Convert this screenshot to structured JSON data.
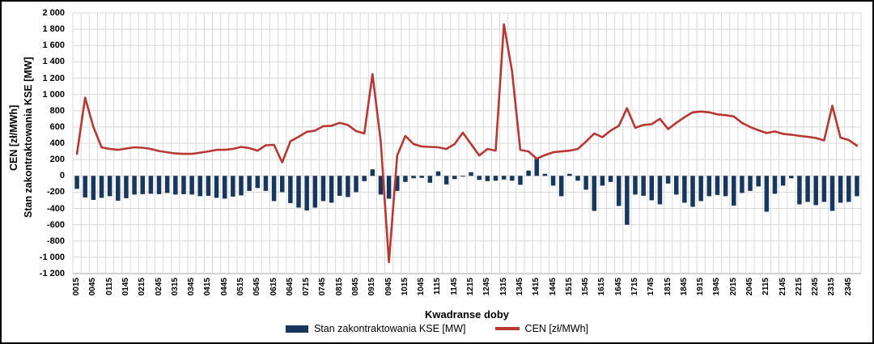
{
  "chart_data": {
    "type": "combo",
    "title": "",
    "xlabel": "Kwadranse doby",
    "y_axis_title_lines": [
      "CEN [zł/MWh]",
      "Stan zakontraktowania KSE [MW]"
    ],
    "ylim": [
      -1200,
      2000
    ],
    "ytick_step": 200,
    "y_tick_labels": [
      "2 000",
      "1 800",
      "1 600",
      "1 400",
      "1 200",
      "1 000",
      "800",
      "600",
      "400",
      "200",
      "0",
      "-200",
      "-400",
      "-600",
      "-800",
      "-1 000",
      "-1 200"
    ],
    "grid": true,
    "legend_position": "bottom",
    "x_label_every": 2,
    "categories": [
      "0015",
      "0030",
      "0045",
      "0100",
      "0115",
      "0130",
      "0145",
      "0200",
      "0215",
      "0230",
      "0245",
      "0300",
      "0315",
      "0330",
      "0345",
      "0400",
      "0415",
      "0430",
      "0445",
      "0500",
      "0515",
      "0530",
      "0545",
      "0600",
      "0615",
      "0630",
      "0645",
      "0700",
      "0715",
      "0730",
      "0745",
      "0800",
      "0815",
      "0830",
      "0845",
      "0900",
      "0915",
      "0930",
      "0945",
      "1000",
      "1015",
      "1030",
      "1045",
      "1100",
      "1115",
      "1130",
      "1145",
      "1200",
      "1215",
      "1230",
      "1245",
      "1300",
      "1315",
      "1330",
      "1345",
      "1400",
      "1415",
      "1430",
      "1445",
      "1500",
      "1515",
      "1530",
      "1545",
      "1600",
      "1615",
      "1630",
      "1645",
      "1700",
      "1715",
      "1730",
      "1745",
      "1800",
      "1815",
      "1830",
      "1845",
      "1900",
      "1915",
      "1930",
      "1945",
      "2000",
      "2015",
      "2030",
      "2045",
      "2100",
      "2115",
      "2130",
      "2145",
      "2200",
      "2215",
      "2230",
      "2245",
      "2300",
      "2315",
      "2330",
      "2345",
      "2400"
    ],
    "series": [
      {
        "name": "Stan zakontraktowania KSE [MW]",
        "type": "bar",
        "color": "#17375E",
        "values": [
          -160,
          -265,
          -295,
          -270,
          -250,
          -305,
          -275,
          -230,
          -225,
          -220,
          -225,
          -210,
          -230,
          -225,
          -230,
          -250,
          -245,
          -270,
          -280,
          -255,
          -240,
          -185,
          -150,
          -185,
          -310,
          -200,
          -335,
          -390,
          -425,
          -390,
          -310,
          -330,
          -245,
          -260,
          -200,
          -65,
          80,
          -230,
          -280,
          -185,
          -75,
          -30,
          -25,
          -85,
          55,
          -105,
          -40,
          -10,
          45,
          -50,
          -65,
          -60,
          -45,
          -60,
          -110,
          65,
          210,
          25,
          -120,
          -250,
          25,
          -60,
          -170,
          -430,
          -120,
          -75,
          -370,
          -600,
          -230,
          -245,
          -300,
          -350,
          -95,
          -230,
          -330,
          -380,
          -310,
          -250,
          -235,
          -250,
          -365,
          -210,
          -185,
          -130,
          -440,
          -220,
          -120,
          -30,
          -350,
          -320,
          -360,
          -320,
          -430,
          -330,
          -320,
          -250
        ]
      },
      {
        "name": "CEN [zł/MWh]",
        "type": "line",
        "color": "#B93732",
        "values": [
          270,
          960,
          600,
          350,
          330,
          320,
          335,
          350,
          345,
          330,
          305,
          290,
          275,
          270,
          270,
          285,
          300,
          320,
          320,
          330,
          355,
          340,
          310,
          375,
          380,
          165,
          425,
          480,
          540,
          555,
          610,
          615,
          650,
          625,
          550,
          520,
          1250,
          420,
          -1060,
          250,
          490,
          390,
          360,
          355,
          350,
          330,
          390,
          530,
          390,
          250,
          330,
          310,
          1860,
          1280,
          320,
          300,
          210,
          255,
          290,
          300,
          310,
          330,
          420,
          520,
          475,
          555,
          615,
          830,
          590,
          625,
          635,
          700,
          575,
          650,
          720,
          780,
          790,
          780,
          755,
          745,
          730,
          650,
          600,
          560,
          525,
          545,
          515,
          505,
          490,
          480,
          465,
          435,
          860,
          470,
          440,
          370
        ]
      }
    ],
    "plot_colors": {
      "gridline": "#D8D8D8",
      "axis_line": "#A6A6A6",
      "background": "#FFFFFF",
      "text": "#000000"
    }
  },
  "legend": {
    "bar_label": "Stan zakontraktowania KSE [MW]",
    "line_label": "CEN [zł/MWh]"
  }
}
